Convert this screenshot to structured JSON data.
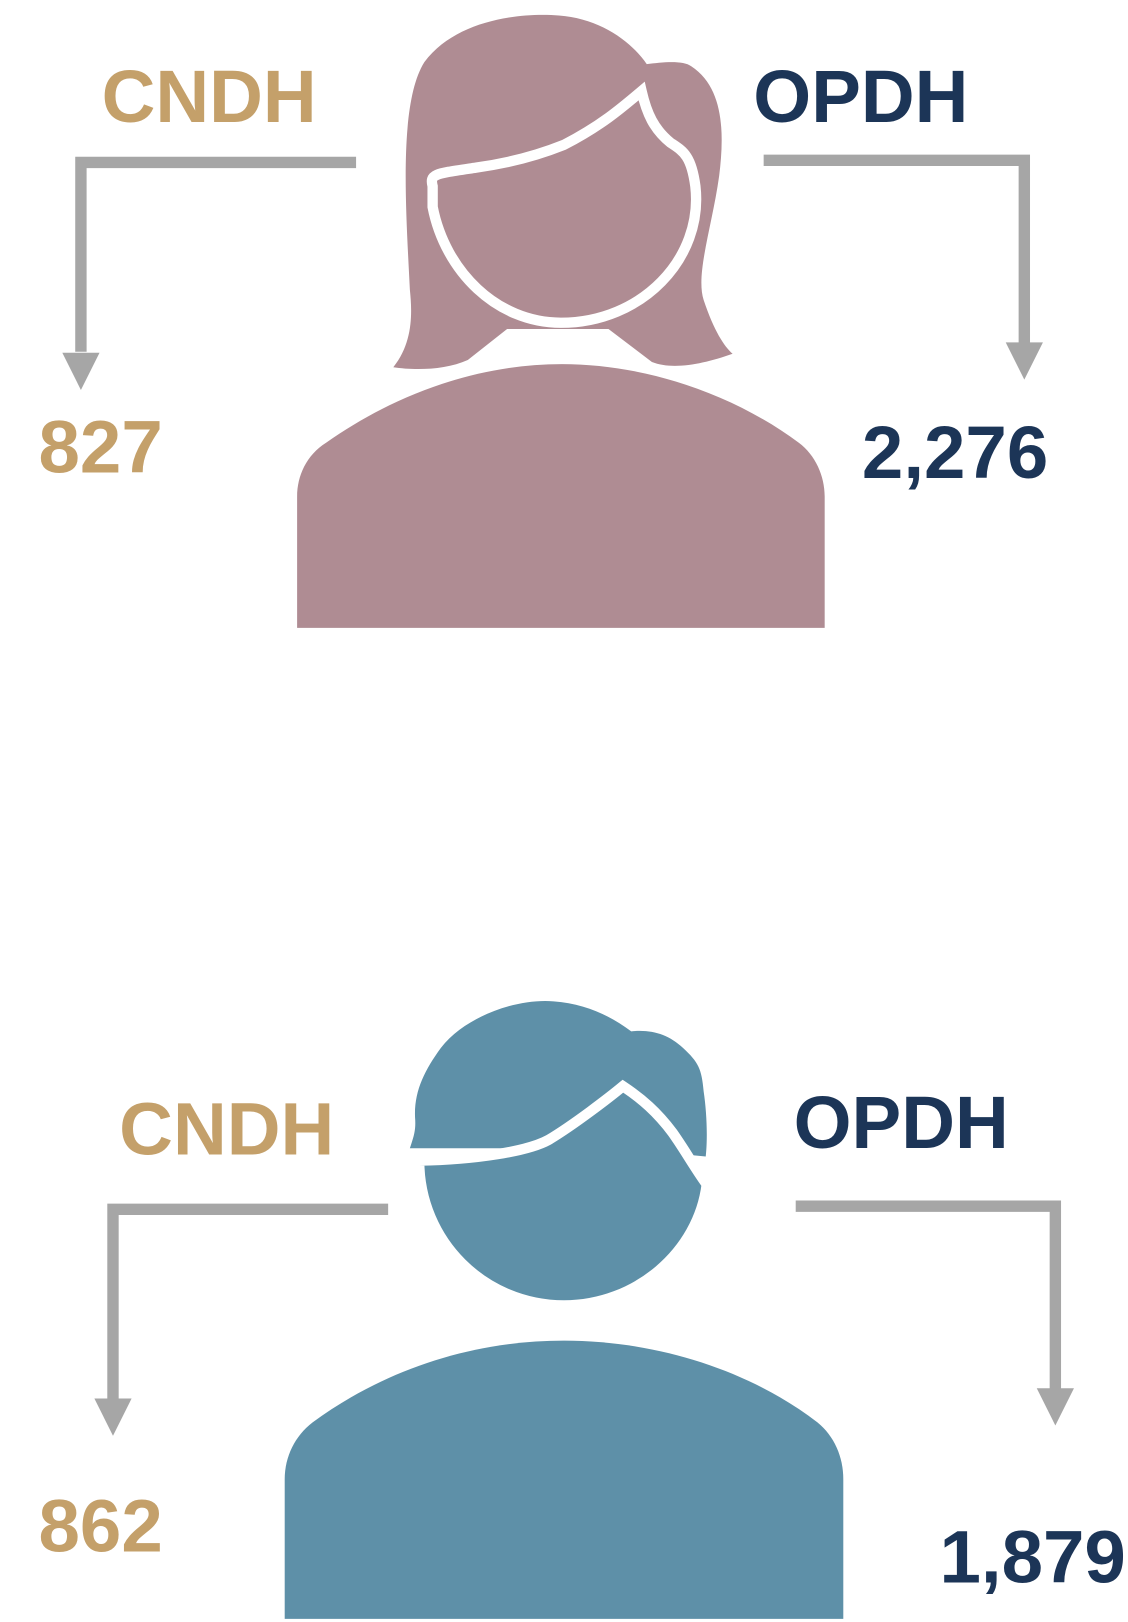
{
  "panels": [
    {
      "left_label": "CNDH",
      "left_value": "827",
      "right_label": "OPDH",
      "right_value": "2,276"
    },
    {
      "left_label": "CNDH",
      "left_value": "862",
      "right_label": "OPDH",
      "right_value": "1,879"
    }
  ]
}
